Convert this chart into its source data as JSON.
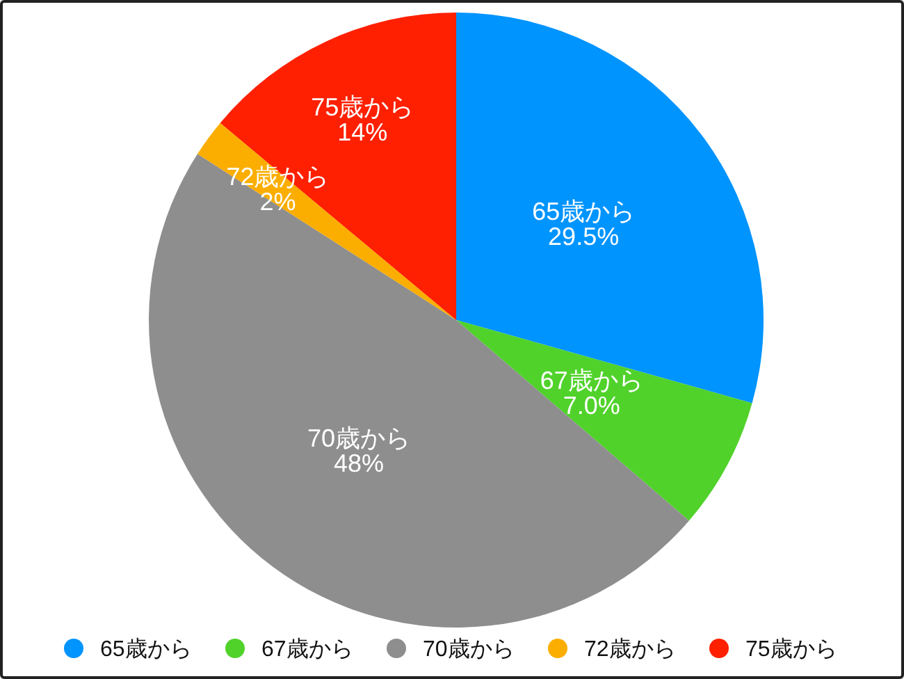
{
  "chart_data": {
    "type": "pie",
    "categories": [
      "65歳から",
      "67歳から",
      "70歳から",
      "72歳から",
      "75歳から"
    ],
    "values": [
      29.5,
      7.0,
      48,
      2,
      14
    ],
    "value_labels": [
      "29.5%",
      "7.0%",
      "48%",
      "2%",
      "14%"
    ],
    "colors": [
      "#0094fe",
      "#50d22b",
      "#8e8e8e",
      "#fbae00",
      "#fe2000"
    ],
    "legend": "bottom"
  }
}
